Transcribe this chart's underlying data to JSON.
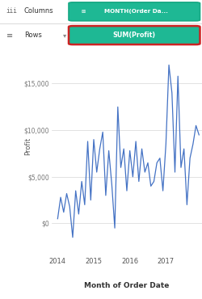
{
  "title_row1": "Columns",
  "title_row2": "Rows",
  "pill1_text": "⊠ MONTH(Order Da...",
  "pill1_icon": "⊠",
  "pill2_text": "SUM(Profit)",
  "xlabel": "Month of Order Date",
  "ylabel": "Profit",
  "yticks": [
    0,
    5000,
    10000,
    15000
  ],
  "ytick_labels": [
    "$0",
    "$5,000",
    "$10,000",
    "$15,000"
  ],
  "xticks": [
    2014,
    2015,
    2016,
    2017
  ],
  "xtick_labels": [
    "2014",
    "2015",
    "2016",
    "2017"
  ],
  "xlim_start": 2013.83,
  "xlim_end": 2018.0,
  "ylim_min": -2500,
  "ylim_max": 19000,
  "line_color": "#4472C4",
  "bg_color": "#FFFFFF",
  "grid_color": "#CCCCCC",
  "header_bg": "#F5F5F5",
  "pill1_bg": "#1EB894",
  "pill1_border": "#17A884",
  "pill2_bg": "#1EB894",
  "pill2_border": "#CC2222",
  "left_panel_border": "#CC2222",
  "bottom_panel_border": "#17AAAA",
  "x_values": [
    2014.0,
    2014.083,
    2014.167,
    2014.25,
    2014.333,
    2014.417,
    2014.5,
    2014.583,
    2014.667,
    2014.75,
    2014.833,
    2014.917,
    2015.0,
    2015.083,
    2015.167,
    2015.25,
    2015.333,
    2015.417,
    2015.5,
    2015.583,
    2015.667,
    2015.75,
    2015.833,
    2015.917,
    2016.0,
    2016.083,
    2016.167,
    2016.25,
    2016.333,
    2016.417,
    2016.5,
    2016.583,
    2016.667,
    2016.75,
    2016.833,
    2016.917,
    2017.0,
    2017.083,
    2017.167,
    2017.25,
    2017.333,
    2017.417,
    2017.5,
    2017.583,
    2017.667,
    2017.75,
    2017.833,
    2017.917
  ],
  "y_values": [
    500,
    2800,
    1200,
    3200,
    1800,
    -1500,
    3500,
    1000,
    4500,
    2000,
    8800,
    2500,
    9000,
    5500,
    8000,
    9800,
    3000,
    7800,
    4200,
    -500,
    12500,
    6000,
    8000,
    3500,
    7800,
    5000,
    8800,
    4500,
    8000,
    5500,
    6500,
    4000,
    4500,
    6500,
    7000,
    3500,
    8500,
    17000,
    14000,
    5500,
    15800,
    6000,
    8000,
    2000,
    7000,
    8500,
    10500,
    9500
  ]
}
